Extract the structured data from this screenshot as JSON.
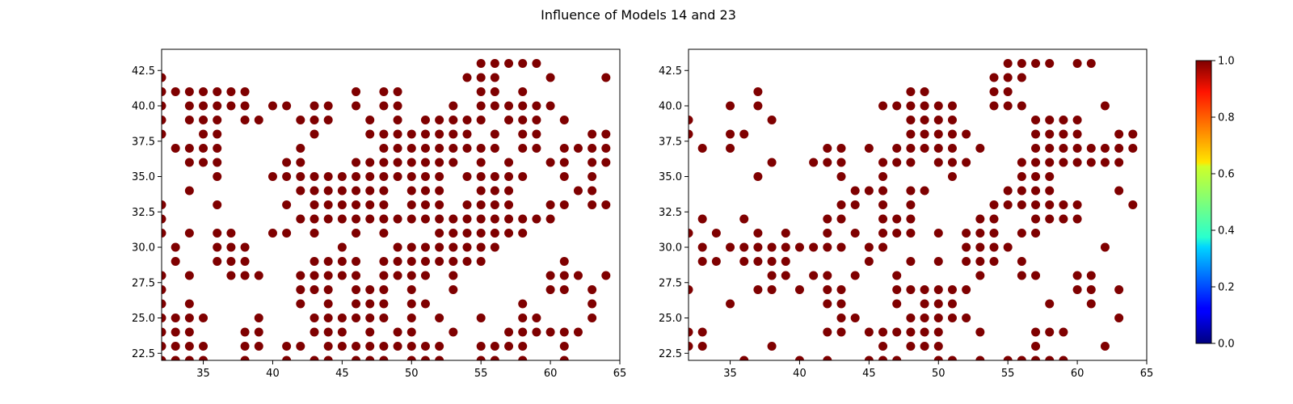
{
  "figure": {
    "title": "Influence of Models 14 and 23"
  },
  "chart_data": [
    {
      "type": "scatter",
      "title": "",
      "xlabel": "",
      "ylabel": "",
      "xlim": [
        32,
        65
      ],
      "ylim": [
        22,
        44
      ],
      "xticks": [
        35,
        40,
        45,
        50,
        55,
        60,
        65
      ],
      "yticks": [
        22.5,
        25.0,
        27.5,
        30.0,
        32.5,
        35.0,
        37.5,
        40.0,
        42.5
      ],
      "grid": false,
      "color_value": 1.0,
      "marker_color": "#7f0000",
      "rows": {
        "43": [
          55,
          56,
          57,
          58,
          59
        ],
        "42": [
          32,
          54,
          55,
          56,
          60,
          64
        ],
        "41": [
          32,
          33,
          34,
          35,
          36,
          37,
          38,
          46,
          48,
          49,
          55,
          56,
          58
        ],
        "40": [
          32,
          34,
          35,
          36,
          37,
          38,
          40,
          41,
          43,
          44,
          46,
          48,
          49,
          53,
          55,
          56,
          57,
          58,
          59,
          60
        ],
        "39": [
          32,
          34,
          35,
          36,
          38,
          39,
          42,
          43,
          44,
          47,
          49,
          51,
          52,
          53,
          54,
          55,
          57,
          58,
          59,
          61
        ],
        "38": [
          32,
          35,
          36,
          43,
          47,
          48,
          49,
          50,
          51,
          52,
          53,
          54,
          56,
          58,
          59,
          63,
          64
        ],
        "37": [
          33,
          34,
          35,
          36,
          42,
          48,
          49,
          50,
          51,
          52,
          53,
          54,
          55,
          56,
          58,
          59,
          61,
          62,
          63,
          64
        ],
        "36": [
          34,
          35,
          36,
          41,
          42,
          46,
          47,
          48,
          49,
          50,
          51,
          52,
          53,
          55,
          57,
          60,
          61,
          63,
          64
        ],
        "35": [
          36,
          40,
          41,
          42,
          43,
          44,
          45,
          46,
          47,
          48,
          49,
          50,
          51,
          52,
          54,
          55,
          56,
          57,
          58,
          61,
          63
        ],
        "34": [
          34,
          42,
          43,
          44,
          45,
          46,
          47,
          48,
          50,
          51,
          52,
          55,
          56,
          57,
          62,
          63
        ],
        "33": [
          32,
          36,
          41,
          43,
          44,
          45,
          46,
          47,
          48,
          50,
          51,
          52,
          54,
          55,
          56,
          57,
          60,
          61,
          63,
          64
        ],
        "32": [
          32,
          42,
          43,
          44,
          45,
          46,
          47,
          48,
          49,
          50,
          51,
          52,
          53,
          54,
          55,
          56,
          57,
          58,
          59,
          60
        ],
        "31": [
          32,
          34,
          36,
          37,
          40,
          41,
          43,
          46,
          48,
          52,
          53,
          54,
          55,
          56,
          57,
          58
        ],
        "30": [
          33,
          36,
          37,
          38,
          45,
          49,
          50,
          51,
          52,
          53,
          54,
          55,
          56
        ],
        "29": [
          33,
          36,
          37,
          38,
          43,
          44,
          45,
          46,
          48,
          49,
          50,
          51,
          52,
          53,
          54,
          55,
          61
        ],
        "28": [
          32,
          34,
          37,
          38,
          39,
          42,
          43,
          44,
          45,
          46,
          48,
          49,
          50,
          51,
          53,
          60,
          61,
          62,
          64
        ],
        "27": [
          32,
          42,
          43,
          44,
          46,
          47,
          48,
          50,
          53,
          60,
          61,
          63
        ],
        "26": [
          32,
          34,
          42,
          44,
          46,
          47,
          48,
          50,
          51,
          58,
          63
        ],
        "25": [
          32,
          33,
          34,
          35,
          39,
          43,
          44,
          45,
          46,
          47,
          48,
          50,
          52,
          55,
          58,
          59,
          63
        ],
        "24": [
          32,
          33,
          34,
          38,
          39,
          43,
          44,
          45,
          47,
          49,
          50,
          53,
          57,
          58,
          59,
          60,
          61,
          62
        ],
        "23": [
          32,
          33,
          34,
          35,
          38,
          39,
          41,
          42,
          44,
          45,
          46,
          47,
          48,
          49,
          50,
          51,
          52,
          55,
          56,
          57,
          58,
          61
        ],
        "22": [
          32,
          33,
          34,
          35,
          38,
          41,
          43,
          44,
          46,
          47,
          48,
          50,
          51,
          52,
          55,
          56,
          58,
          61
        ]
      }
    },
    {
      "type": "scatter",
      "title": "",
      "xlabel": "",
      "ylabel": "",
      "xlim": [
        32,
        65
      ],
      "ylim": [
        22,
        44
      ],
      "xticks": [
        35,
        40,
        45,
        50,
        55,
        60,
        65
      ],
      "yticks": [
        22.5,
        25.0,
        27.5,
        30.0,
        32.5,
        35.0,
        37.5,
        40.0,
        42.5
      ],
      "grid": false,
      "color_value": 1.0,
      "marker_color": "#7f0000",
      "rows": {
        "43": [
          55,
          56,
          57,
          58,
          60,
          61
        ],
        "42": [
          54,
          55,
          56
        ],
        "41": [
          37,
          48,
          49,
          54,
          55
        ],
        "40": [
          35,
          37,
          46,
          47,
          48,
          49,
          50,
          51,
          54,
          55,
          56,
          62
        ],
        "39": [
          32,
          38,
          48,
          49,
          50,
          51,
          57,
          58,
          59,
          60
        ],
        "38": [
          32,
          35,
          36,
          48,
          49,
          50,
          51,
          52,
          57,
          58,
          59,
          60,
          63,
          64
        ],
        "37": [
          33,
          35,
          42,
          43,
          45,
          47,
          48,
          49,
          50,
          51,
          53,
          57,
          58,
          59,
          60,
          61,
          62,
          63,
          64
        ],
        "36": [
          38,
          41,
          42,
          43,
          46,
          47,
          48,
          50,
          51,
          52,
          56,
          57,
          58,
          59,
          60,
          61,
          62,
          63
        ],
        "35": [
          37,
          43,
          46,
          51,
          56,
          57,
          58
        ],
        "34": [
          44,
          45,
          46,
          48,
          49,
          55,
          56,
          57,
          58,
          63
        ],
        "33": [
          43,
          44,
          46,
          48,
          54,
          55,
          56,
          57,
          58,
          59,
          60,
          64
        ],
        "32": [
          33,
          36,
          42,
          43,
          46,
          47,
          48,
          53,
          54,
          57,
          58,
          59,
          60
        ],
        "31": [
          32,
          34,
          37,
          39,
          42,
          44,
          46,
          47,
          48,
          50,
          52,
          53,
          54,
          56,
          57
        ],
        "30": [
          33,
          35,
          36,
          37,
          38,
          39,
          40,
          41,
          42,
          43,
          45,
          46,
          52,
          53,
          54,
          55,
          62
        ],
        "29": [
          33,
          34,
          36,
          37,
          38,
          39,
          45,
          48,
          50,
          52,
          53,
          54,
          56
        ],
        "28": [
          38,
          39,
          41,
          42,
          44,
          47,
          53,
          56,
          57,
          60,
          61
        ],
        "27": [
          32,
          37,
          38,
          40,
          42,
          43,
          47,
          48,
          49,
          50,
          51,
          52,
          60,
          61,
          63
        ],
        "26": [
          35,
          42,
          43,
          47,
          49,
          50,
          51,
          58,
          61
        ],
        "25": [
          43,
          44,
          48,
          49,
          50,
          51,
          52,
          63
        ],
        "24": [
          32,
          33,
          42,
          43,
          45,
          46,
          47,
          48,
          49,
          50,
          53,
          57,
          58,
          59
        ],
        "23": [
          32,
          33,
          38,
          46,
          48,
          49,
          50,
          57,
          62
        ],
        "22": [
          36,
          40,
          42,
          45,
          46,
          47,
          50,
          51,
          53,
          55,
          56,
          57,
          58,
          59
        ]
      }
    }
  ],
  "colorbar": {
    "min": 0.0,
    "max": 1.0,
    "ticks": [
      "0.0",
      "0.2",
      "0.4",
      "0.6",
      "0.8",
      "1.0"
    ],
    "colormap": "jet"
  }
}
